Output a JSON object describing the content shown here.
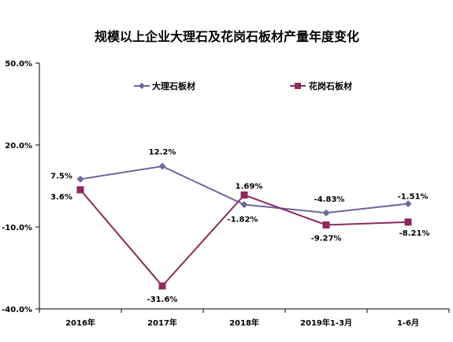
{
  "chart_data": {
    "type": "line",
    "title": "规模以上企业大理石及花岗石板材产量年度变化",
    "categories": [
      "2016年",
      "2017年",
      "2018年",
      "2019年1-3月",
      "1-6月"
    ],
    "y_tick_labels": [
      "50.0%",
      "20.0%",
      "-10.0%",
      "-40.0%"
    ],
    "ylim": [
      -40,
      50
    ],
    "y_ticks": [
      50,
      20,
      -10,
      -40
    ],
    "grid": false,
    "legend_position": "top",
    "series": [
      {
        "name": "大理石板材",
        "color": "#6a6a9e",
        "marker": "diamond",
        "values": [
          7.5,
          12.2,
          -1.82,
          -4.83,
          -1.51
        ],
        "labels": [
          "7.5%",
          "12.2%",
          "-1.82%",
          "-4.83%",
          "-1.51%"
        ]
      },
      {
        "name": "花岗石板材",
        "color": "#8c2a5c",
        "marker": "square",
        "values": [
          3.6,
          -31.6,
          1.69,
          -9.27,
          -8.21
        ],
        "labels": [
          "3.6%",
          "-31.6%",
          "1.69%",
          "-9.27%",
          "-8.21%"
        ]
      }
    ]
  }
}
